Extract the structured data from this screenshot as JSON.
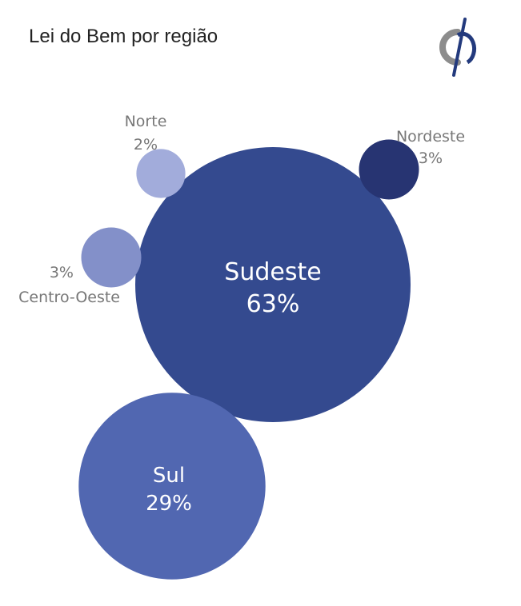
{
  "title": "Lei do Bem por região",
  "logo": {
    "icon": "brand-logo-icon",
    "colors": {
      "arc": "#8c8c8c",
      "stroke": "#233a7d"
    }
  },
  "chart_data": {
    "type": "bubble",
    "title": "Lei do Bem por região",
    "unit": "%",
    "series": [
      {
        "name": "Sudeste",
        "value": 63,
        "label": "63%",
        "color": "#344a8f",
        "label_style": "inside"
      },
      {
        "name": "Sul",
        "value": 29,
        "label": "29%",
        "color": "#5167b1",
        "label_style": "inside"
      },
      {
        "name": "Nordeste",
        "value": 3,
        "label": "3%",
        "color": "#273472",
        "label_style": "outside"
      },
      {
        "name": "Centro-Oeste",
        "value": 3,
        "label": "3%",
        "color": "#8390c9",
        "label_style": "outside"
      },
      {
        "name": "Norte",
        "value": 2,
        "label": "2%",
        "color": "#a2acdb",
        "label_style": "outside"
      }
    ]
  }
}
